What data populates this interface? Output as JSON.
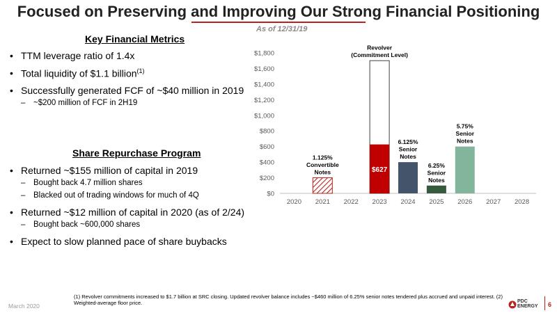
{
  "title": "Focused on Preserving and Improving Our Strong Financial Positioning",
  "as_of": "As of 12/31/19",
  "metrics": {
    "heading": "Key Financial Metrics",
    "b1": "TTM leverage ratio of 1.4x",
    "b2": "Total liquidity of $1.1 billion",
    "b2_sup": "(1)",
    "b3": "Successfully generated FCF of ~$40 million in 2019",
    "b3_sub": "~$200 million of FCF in 2H19"
  },
  "repurchase": {
    "heading": "Share Repurchase Program",
    "b1": "Returned ~$155 million of capital in 2019",
    "b1_sub1": "Bought back 4.7 million shares",
    "b1_sub2": "Blacked out of trading windows for much of 4Q",
    "b2": "Returned ~$12 million of capital in 2020 (as of 2/24)",
    "b2_sub1": "Bought back ~600,000 shares",
    "b3": "Expect to slow planned pace of share buybacks"
  },
  "chart_data": {
    "type": "bar",
    "categories": [
      "2020",
      "2021",
      "2022",
      "2023",
      "2024",
      "2025",
      "2026",
      "2027",
      "2028"
    ],
    "y_ticks": [
      "$0",
      "$200",
      "$400",
      "$600",
      "$800",
      "$1,000",
      "$1,200",
      "$1,400",
      "$1,600",
      "$1,800"
    ],
    "ylim": [
      0,
      1800
    ],
    "grid": false,
    "bars": [
      {
        "category": "2021",
        "value": 200,
        "label": [
          "1.125%",
          "Convertible",
          "Notes"
        ],
        "color": "#b5251d",
        "style": "hatched"
      },
      {
        "category": "2023",
        "value": 627,
        "value_label": "$627",
        "color": "#c00000",
        "style": "solid"
      },
      {
        "category": "2023",
        "value": 1700,
        "label": [
          "Revolver",
          "(Commitment Level)"
        ],
        "color": "#ffffff",
        "style": "outline"
      },
      {
        "category": "2024",
        "value": 400,
        "label": [
          "6.125%",
          "Senior",
          "Notes"
        ],
        "color": "#44546a",
        "style": "solid"
      },
      {
        "category": "2025",
        "value": 100,
        "label": [
          "6.25%",
          "Senior",
          "Notes"
        ],
        "color": "#375a3f",
        "style": "solid"
      },
      {
        "category": "2026",
        "value": 600,
        "label": [
          "5.75%",
          "Senior",
          "Notes"
        ],
        "color": "#82b59c",
        "style": "solid"
      }
    ]
  },
  "footnote": "(1) Revolver commitments increased to $1.7 billion at SRC closing. Updated revolver balance includes ~$460 million of 6.25% senior notes tendered plus accrued and unpaid interest. (2) Weighted-average floor price.",
  "footer": {
    "date": "March 2020",
    "logo_line1": "PDC",
    "logo_line2": "ENERGY",
    "page_number": "6"
  },
  "colors": {
    "accent": "#b5251d"
  }
}
